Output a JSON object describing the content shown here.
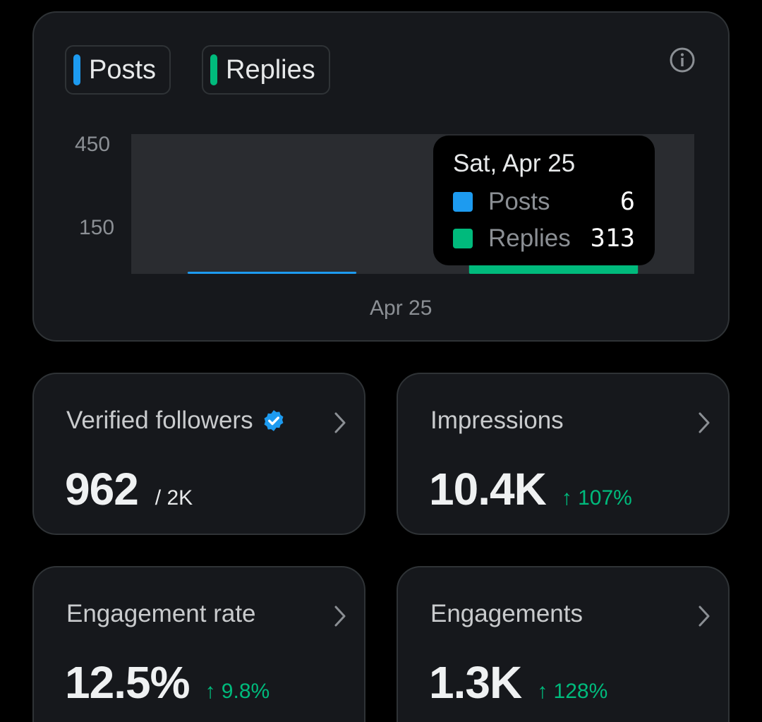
{
  "chart": {
    "legend": [
      {
        "label": "Posts",
        "color": "#1d9bf0"
      },
      {
        "label": "Replies",
        "color": "#00ba7c"
      }
    ],
    "info_icon": "info-icon",
    "tooltip": {
      "date": "Sat, Apr 25",
      "rows": [
        {
          "label": "Posts",
          "value": "6",
          "color": "#1d9bf0"
        },
        {
          "label": "Replies",
          "value": "313",
          "color": "#00ba7c"
        }
      ]
    }
  },
  "chart_data": {
    "type": "bar",
    "categories": [
      "Apr 25"
    ],
    "series": [
      {
        "name": "Posts",
        "values": [
          6
        ],
        "color": "#1d9bf0"
      },
      {
        "name": "Replies",
        "values": [
          313
        ],
        "color": "#00ba7c"
      }
    ],
    "y_ticks": [
      "450",
      "150"
    ],
    "x_ticks": [
      "Apr 25"
    ],
    "ylim": [
      0,
      450
    ],
    "grid": false,
    "legend_position": "top-left"
  },
  "stats": {
    "verified_followers": {
      "title": "Verified followers",
      "value": "962",
      "sub": "/ 2K",
      "icon": "verified-badge-icon"
    },
    "impressions": {
      "title": "Impressions",
      "value": "10.4K",
      "change": "↑ 107%"
    },
    "engagement_rate": {
      "title": "Engagement rate",
      "value": "12.5%",
      "change": "↑ 9.8%"
    },
    "engagements": {
      "title": "Engagements",
      "value": "1.3K",
      "change": "↑ 128%"
    }
  },
  "colors": {
    "background": "#000000",
    "card": "#16181c",
    "border": "#2f3336",
    "positive": "#00ba7c",
    "accent": "#1d9bf0"
  }
}
